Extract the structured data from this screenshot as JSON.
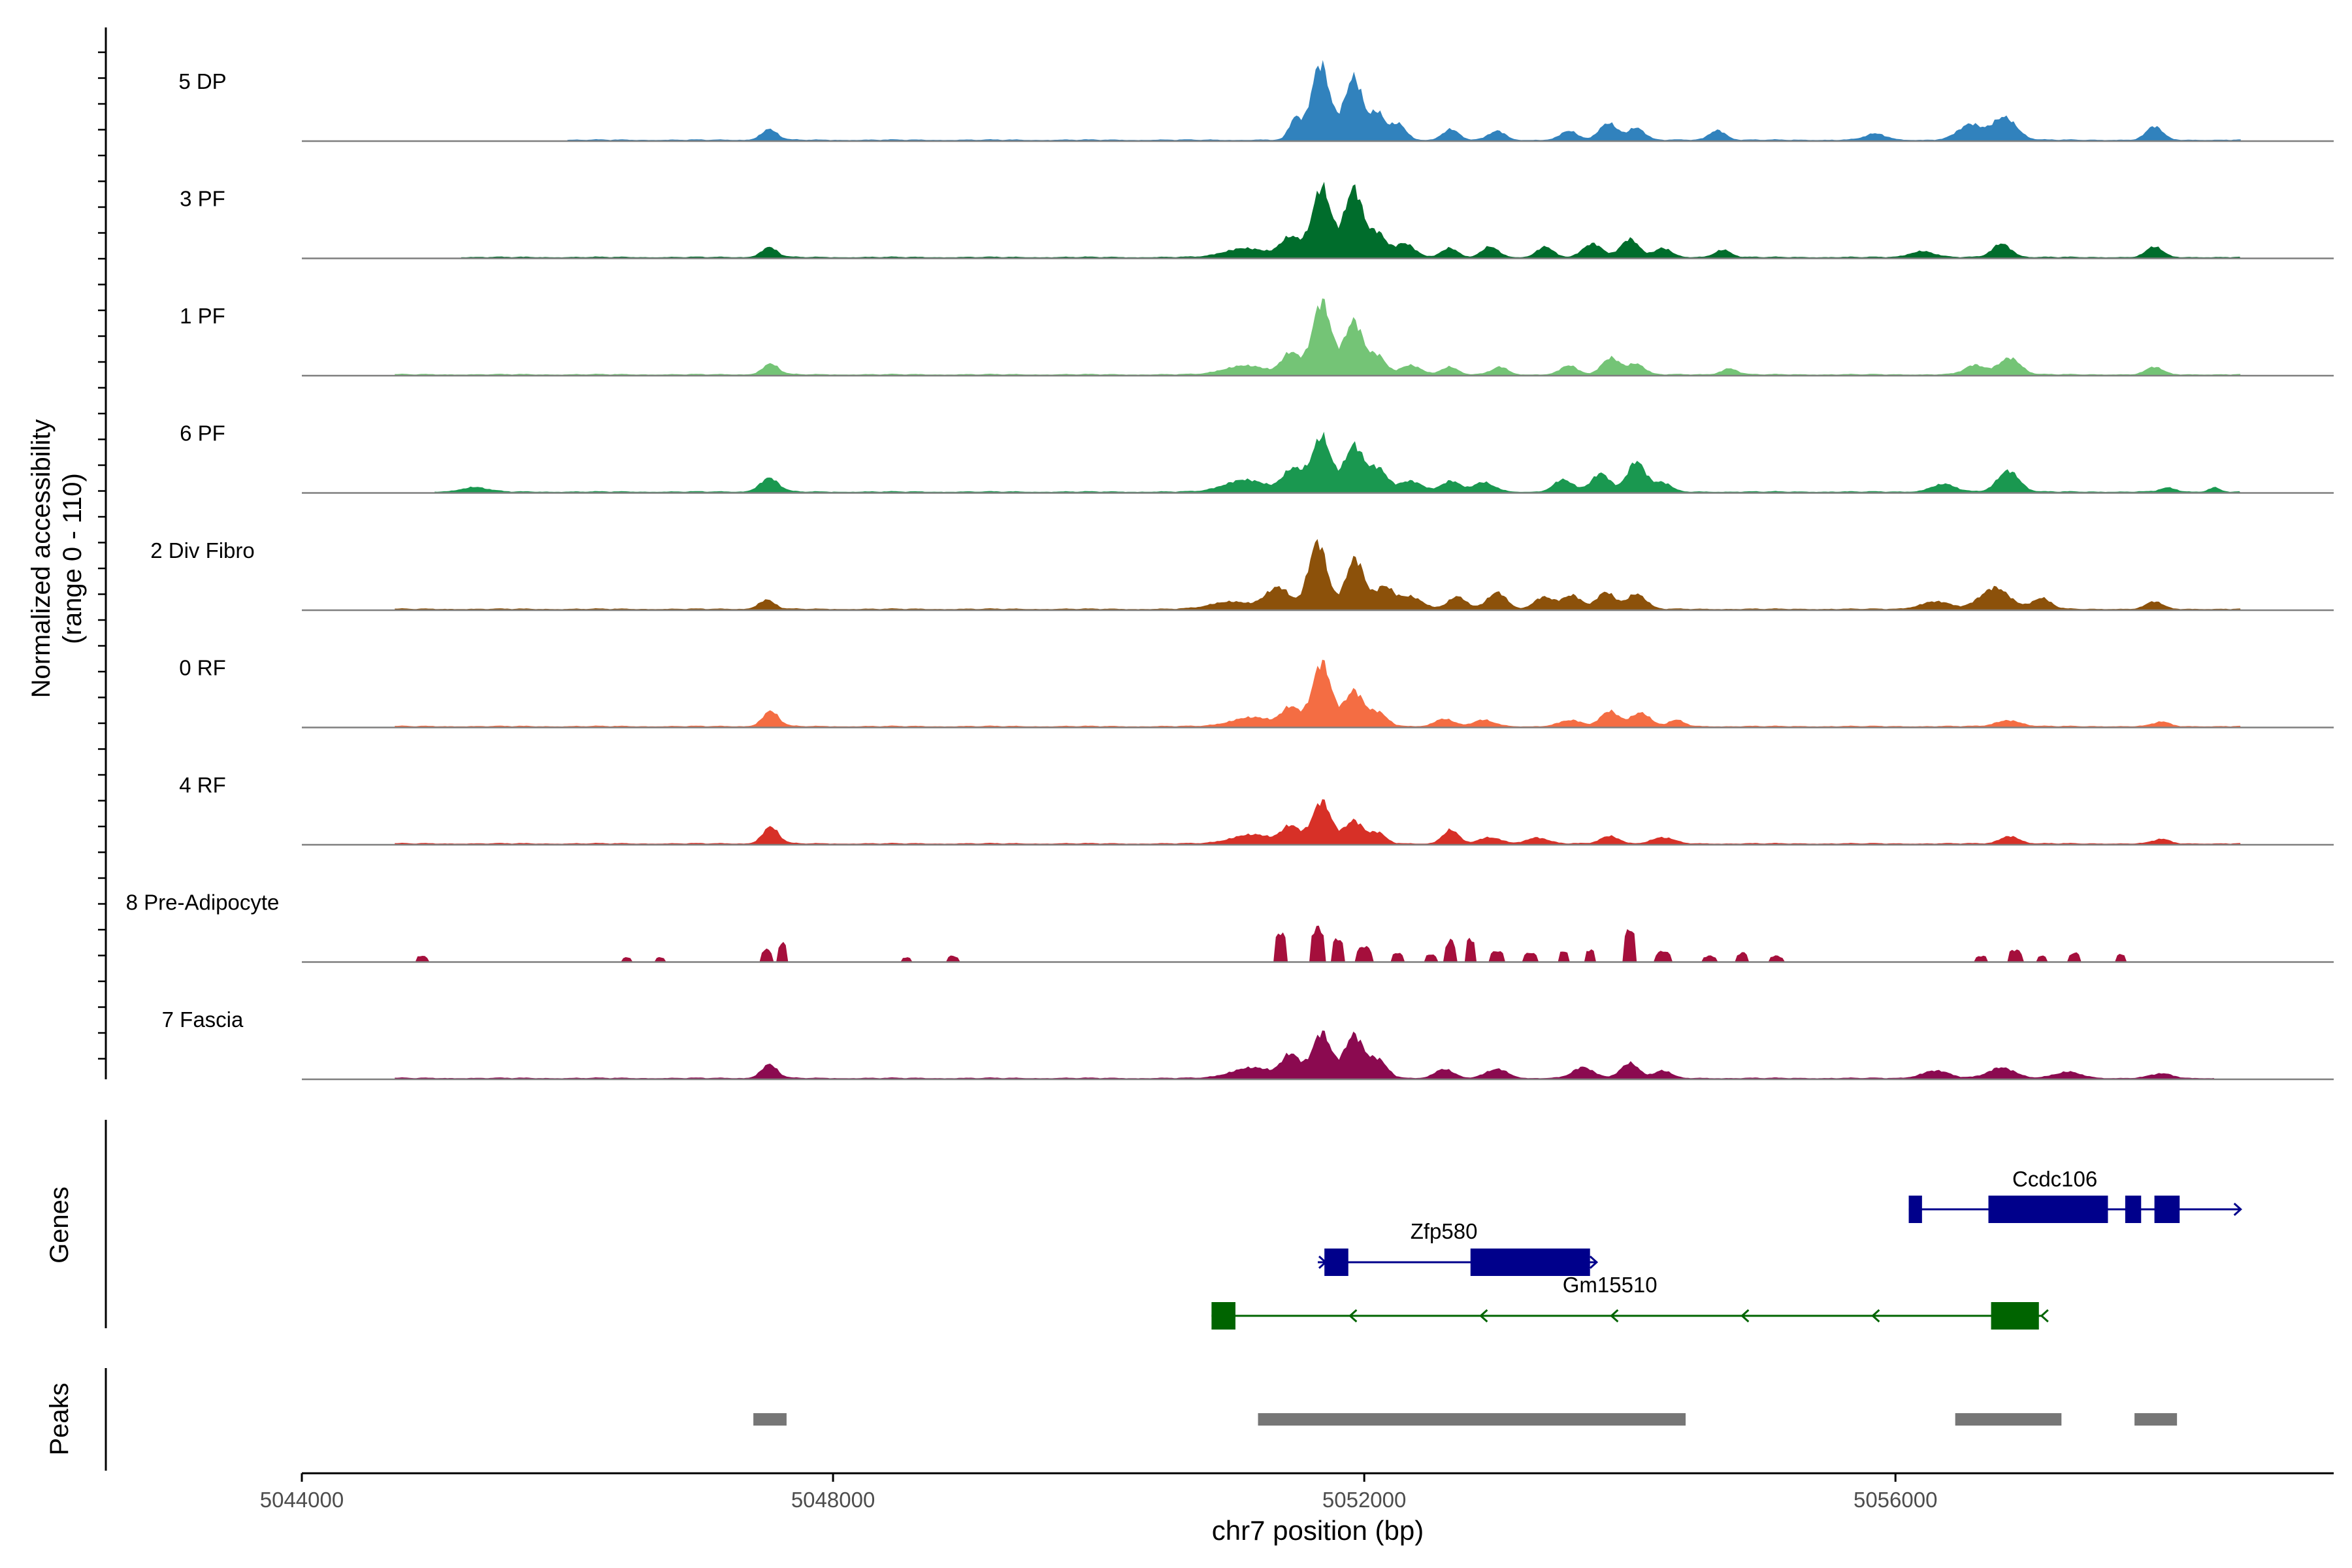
{
  "chart_data": {
    "type": "area",
    "title": "",
    "ylabel_line1": "Normalized accessibility",
    "ylabel_line2": "(range 0 - 110)",
    "y_range": [
      0,
      110
    ],
    "xlabel": "chr7 position (bp)",
    "xlim": [
      5044000,
      5059300
    ],
    "x_ticks": [
      5044000,
      5048000,
      5052000,
      5056000
    ],
    "x_tick_labels": [
      "5044000",
      "5048000",
      "5052000",
      "5056000"
    ],
    "tracks": [
      {
        "name": "5 DP",
        "color": "#3182BD",
        "style": "dense",
        "start": 5046000,
        "end": 5058600,
        "peaks": [
          [
            5047520,
            14,
            60
          ],
          [
            5051480,
            28,
            45
          ],
          [
            5051670,
            100,
            70
          ],
          [
            5051920,
            82,
            70
          ],
          [
            5052100,
            34,
            50
          ],
          [
            5052250,
            22,
            60
          ],
          [
            5052650,
            14,
            60
          ],
          [
            5053000,
            12,
            60
          ],
          [
            5053540,
            12,
            60
          ],
          [
            5053840,
            22,
            70
          ],
          [
            5054050,
            16,
            60
          ],
          [
            5054660,
            13,
            60
          ],
          [
            5055850,
            8,
            80
          ],
          [
            5056560,
            20,
            90
          ],
          [
            5056820,
            30,
            90
          ],
          [
            5057950,
            18,
            60
          ]
        ]
      },
      {
        "name": "3 PF",
        "color": "#006D2C",
        "style": "dense",
        "start": 5045200,
        "end": 5058600,
        "peaks": [
          [
            5047520,
            13,
            60
          ],
          [
            5051100,
            12,
            150
          ],
          [
            5051450,
            26,
            80
          ],
          [
            5051680,
            92,
            70
          ],
          [
            5051920,
            90,
            70
          ],
          [
            5052100,
            30,
            60
          ],
          [
            5052300,
            18,
            80
          ],
          [
            5052640,
            12,
            60
          ],
          [
            5052950,
            14,
            60
          ],
          [
            5053360,
            14,
            60
          ],
          [
            5053720,
            18,
            70
          ],
          [
            5054000,
            24,
            70
          ],
          [
            5054250,
            12,
            60
          ],
          [
            5054700,
            10,
            60
          ],
          [
            5056200,
            8,
            90
          ],
          [
            5056800,
            18,
            70
          ],
          [
            5057950,
            14,
            60
          ]
        ]
      },
      {
        "name": "1 PF",
        "color": "#74C476",
        "style": "dense",
        "start": 5044700,
        "end": 5058600,
        "peaks": [
          [
            5047530,
            14,
            60
          ],
          [
            5051100,
            12,
            150
          ],
          [
            5051450,
            28,
            70
          ],
          [
            5051680,
            96,
            70
          ],
          [
            5051920,
            70,
            70
          ],
          [
            5052100,
            24,
            60
          ],
          [
            5052350,
            12,
            80
          ],
          [
            5052640,
            10,
            60
          ],
          [
            5053020,
            10,
            60
          ],
          [
            5053540,
            12,
            60
          ],
          [
            5053860,
            22,
            70
          ],
          [
            5054050,
            14,
            60
          ],
          [
            5054750,
            8,
            60
          ],
          [
            5056600,
            12,
            80
          ],
          [
            5056860,
            22,
            80
          ],
          [
            5057950,
            10,
            60
          ]
        ]
      },
      {
        "name": "6 PF",
        "color": "#1A9850",
        "style": "dense",
        "start": 5045000,
        "end": 5058600,
        "peaks": [
          [
            5045300,
            6,
            100
          ],
          [
            5047520,
            18,
            70
          ],
          [
            5051100,
            16,
            150
          ],
          [
            5051470,
            30,
            80
          ],
          [
            5051680,
            72,
            70
          ],
          [
            5051920,
            60,
            70
          ],
          [
            5052100,
            30,
            70
          ],
          [
            5052350,
            14,
            90
          ],
          [
            5052650,
            14,
            70
          ],
          [
            5052900,
            12,
            80
          ],
          [
            5053500,
            16,
            70
          ],
          [
            5053780,
            24,
            70
          ],
          [
            5054050,
            40,
            70
          ],
          [
            5054250,
            12,
            60
          ],
          [
            5056360,
            10,
            90
          ],
          [
            5056850,
            28,
            80
          ],
          [
            5058050,
            5,
            60
          ],
          [
            5058400,
            6,
            40
          ]
        ]
      },
      {
        "name": "2 Div Fibro",
        "color": "#8C510A",
        "style": "dense",
        "start": 5044700,
        "end": 5058600,
        "peaks": [
          [
            5047500,
            12,
            60
          ],
          [
            5051000,
            10,
            150
          ],
          [
            5051350,
            28,
            90
          ],
          [
            5051650,
            88,
            70
          ],
          [
            5051930,
            66,
            70
          ],
          [
            5052150,
            28,
            70
          ],
          [
            5052350,
            16,
            90
          ],
          [
            5052700,
            16,
            70
          ],
          [
            5053000,
            22,
            70
          ],
          [
            5053350,
            16,
            70
          ],
          [
            5053560,
            18,
            70
          ],
          [
            5053820,
            22,
            70
          ],
          [
            5054050,
            20,
            70
          ],
          [
            5056300,
            10,
            110
          ],
          [
            5056750,
            28,
            110
          ],
          [
            5057100,
            14,
            70
          ],
          [
            5057950,
            10,
            60
          ]
        ]
      },
      {
        "name": "0 RF",
        "color": "#F46D43",
        "style": "dense",
        "start": 5044700,
        "end": 5058600,
        "peaks": [
          [
            5047530,
            20,
            60
          ],
          [
            5051150,
            12,
            150
          ],
          [
            5051450,
            24,
            70
          ],
          [
            5051680,
            84,
            70
          ],
          [
            5051920,
            46,
            70
          ],
          [
            5052100,
            18,
            70
          ],
          [
            5052600,
            10,
            70
          ],
          [
            5052900,
            8,
            80
          ],
          [
            5053550,
            8,
            80
          ],
          [
            5053850,
            20,
            70
          ],
          [
            5054080,
            18,
            70
          ],
          [
            5054350,
            8,
            60
          ],
          [
            5056850,
            8,
            90
          ],
          [
            5058000,
            6,
            60
          ]
        ]
      },
      {
        "name": "4 RF",
        "color": "#D73027",
        "style": "dense",
        "start": 5044700,
        "end": 5058600,
        "peaks": [
          [
            5047530,
            22,
            60
          ],
          [
            5051150,
            12,
            150
          ],
          [
            5051450,
            22,
            70
          ],
          [
            5051680,
            56,
            70
          ],
          [
            5051920,
            30,
            70
          ],
          [
            5052100,
            14,
            60
          ],
          [
            5052650,
            18,
            60
          ],
          [
            5052950,
            8,
            80
          ],
          [
            5053300,
            8,
            80
          ],
          [
            5053850,
            10,
            70
          ],
          [
            5054250,
            8,
            80
          ],
          [
            5056860,
            10,
            70
          ],
          [
            5058000,
            6,
            60
          ]
        ]
      },
      {
        "name": "8 Pre-Adipocyte",
        "color": "#A50F3C",
        "style": "sparse",
        "start": 5044800,
        "end": 5058000,
        "peaks": [
          [
            5044900,
            8,
            45
          ],
          [
            5046450,
            6,
            40
          ],
          [
            5046700,
            6,
            40
          ],
          [
            5047500,
            16,
            45
          ],
          [
            5047620,
            24,
            40
          ],
          [
            5048550,
            6,
            40
          ],
          [
            5048900,
            8,
            40
          ],
          [
            5051370,
            38,
            45
          ],
          [
            5051650,
            44,
            55
          ],
          [
            5051800,
            30,
            45
          ],
          [
            5052000,
            20,
            55
          ],
          [
            5052250,
            12,
            40
          ],
          [
            5052500,
            10,
            40
          ],
          [
            5052650,
            28,
            40
          ],
          [
            5052800,
            30,
            40
          ],
          [
            5053000,
            14,
            55
          ],
          [
            5053250,
            12,
            50
          ],
          [
            5053500,
            14,
            40
          ],
          [
            5053700,
            16,
            40
          ],
          [
            5054000,
            42,
            45
          ],
          [
            5054250,
            14,
            55
          ],
          [
            5054600,
            8,
            50
          ],
          [
            5054850,
            12,
            45
          ],
          [
            5055100,
            8,
            50
          ],
          [
            5056650,
            8,
            45
          ],
          [
            5056900,
            16,
            50
          ],
          [
            5057100,
            8,
            40
          ],
          [
            5057350,
            12,
            40
          ],
          [
            5057700,
            10,
            40
          ]
        ]
      },
      {
        "name": "7 Fascia",
        "color": "#8B0A50",
        "style": "dense",
        "start": 5044700,
        "end": 5058400,
        "peaks": [
          [
            5047520,
            18,
            60
          ],
          [
            5051150,
            14,
            150
          ],
          [
            5051450,
            30,
            70
          ],
          [
            5051680,
            60,
            70
          ],
          [
            5051920,
            56,
            70
          ],
          [
            5052100,
            24,
            70
          ],
          [
            5052600,
            12,
            70
          ],
          [
            5053000,
            12,
            80
          ],
          [
            5053650,
            14,
            80
          ],
          [
            5054000,
            20,
            70
          ],
          [
            5054250,
            10,
            60
          ],
          [
            5056300,
            10,
            100
          ],
          [
            5056800,
            14,
            100
          ],
          [
            5057300,
            8,
            100
          ],
          [
            5058000,
            6,
            80
          ]
        ]
      }
    ],
    "genes_label": "Genes",
    "genes": [
      {
        "name": "Ccdc106",
        "color": "#00008B",
        "strand": "+",
        "start": 5056100,
        "end": 5058600,
        "exons": [
          [
            5056100,
            5056200
          ],
          [
            5056700,
            5057600
          ],
          [
            5057730,
            5057850
          ],
          [
            5057950,
            5058140
          ]
        ]
      },
      {
        "name": "Zfp580",
        "color": "#00008B",
        "strand": "+",
        "start": 5051650,
        "end": 5053750,
        "exons": [
          [
            5051700,
            5051880
          ],
          [
            5052800,
            5053700
          ]
        ]
      },
      {
        "name": "Gm15510",
        "color": "#006400",
        "strand": "-",
        "start": 5050850,
        "end": 5057100,
        "exons": [
          [
            5050850,
            5051030
          ],
          [
            5056720,
            5057080
          ]
        ]
      }
    ],
    "peaks_label": "Peaks",
    "peak_regions": [
      [
        5047400,
        5047650
      ],
      [
        5051200,
        5054420
      ],
      [
        5056450,
        5057250
      ],
      [
        5057800,
        5058120
      ]
    ]
  }
}
